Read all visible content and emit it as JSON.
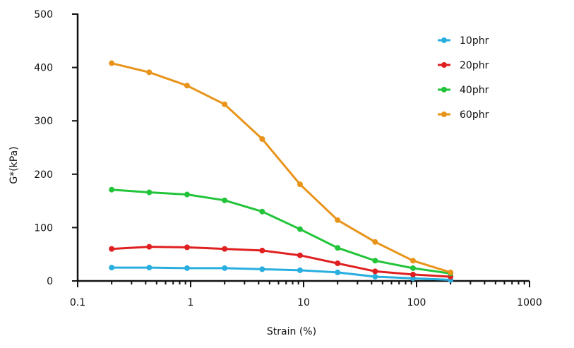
{
  "chart_data": {
    "type": "line",
    "title": "",
    "xlabel": "Strain (%)",
    "ylabel": "G*(kPa)",
    "x_scale": "log",
    "xlim": [
      0.1,
      1000
    ],
    "ylim": [
      0,
      500
    ],
    "x_ticks": [
      0.1,
      1,
      10,
      100,
      1000
    ],
    "x_tick_labels": [
      "0.1",
      "1",
      "10",
      "100",
      "1000"
    ],
    "y_ticks": [
      0,
      100,
      200,
      300,
      400,
      500
    ],
    "y_tick_labels": [
      "0",
      "100",
      "200",
      "300",
      "400",
      "500"
    ],
    "grid": false,
    "legend_position": "top-right",
    "x": [
      0.2,
      0.43,
      0.93,
      2.0,
      4.3,
      9.3,
      20,
      43,
      93,
      200
    ],
    "series": [
      {
        "name": "10phr",
        "color": "#29aee0",
        "values": [
          25,
          25,
          24,
          24,
          22,
          20,
          16,
          8,
          5,
          2
        ]
      },
      {
        "name": "20phr",
        "color": "#e02020",
        "values": [
          60,
          64,
          63,
          60,
          57,
          48,
          33,
          18,
          12,
          8
        ]
      },
      {
        "name": "40phr",
        "color": "#22c43a",
        "values": [
          171,
          166,
          162,
          151,
          130,
          97,
          62,
          38,
          24,
          14
        ]
      },
      {
        "name": "60phr",
        "color": "#e8941a",
        "values": [
          408,
          391,
          366,
          331,
          266,
          181,
          114,
          73,
          38,
          16
        ]
      }
    ]
  }
}
